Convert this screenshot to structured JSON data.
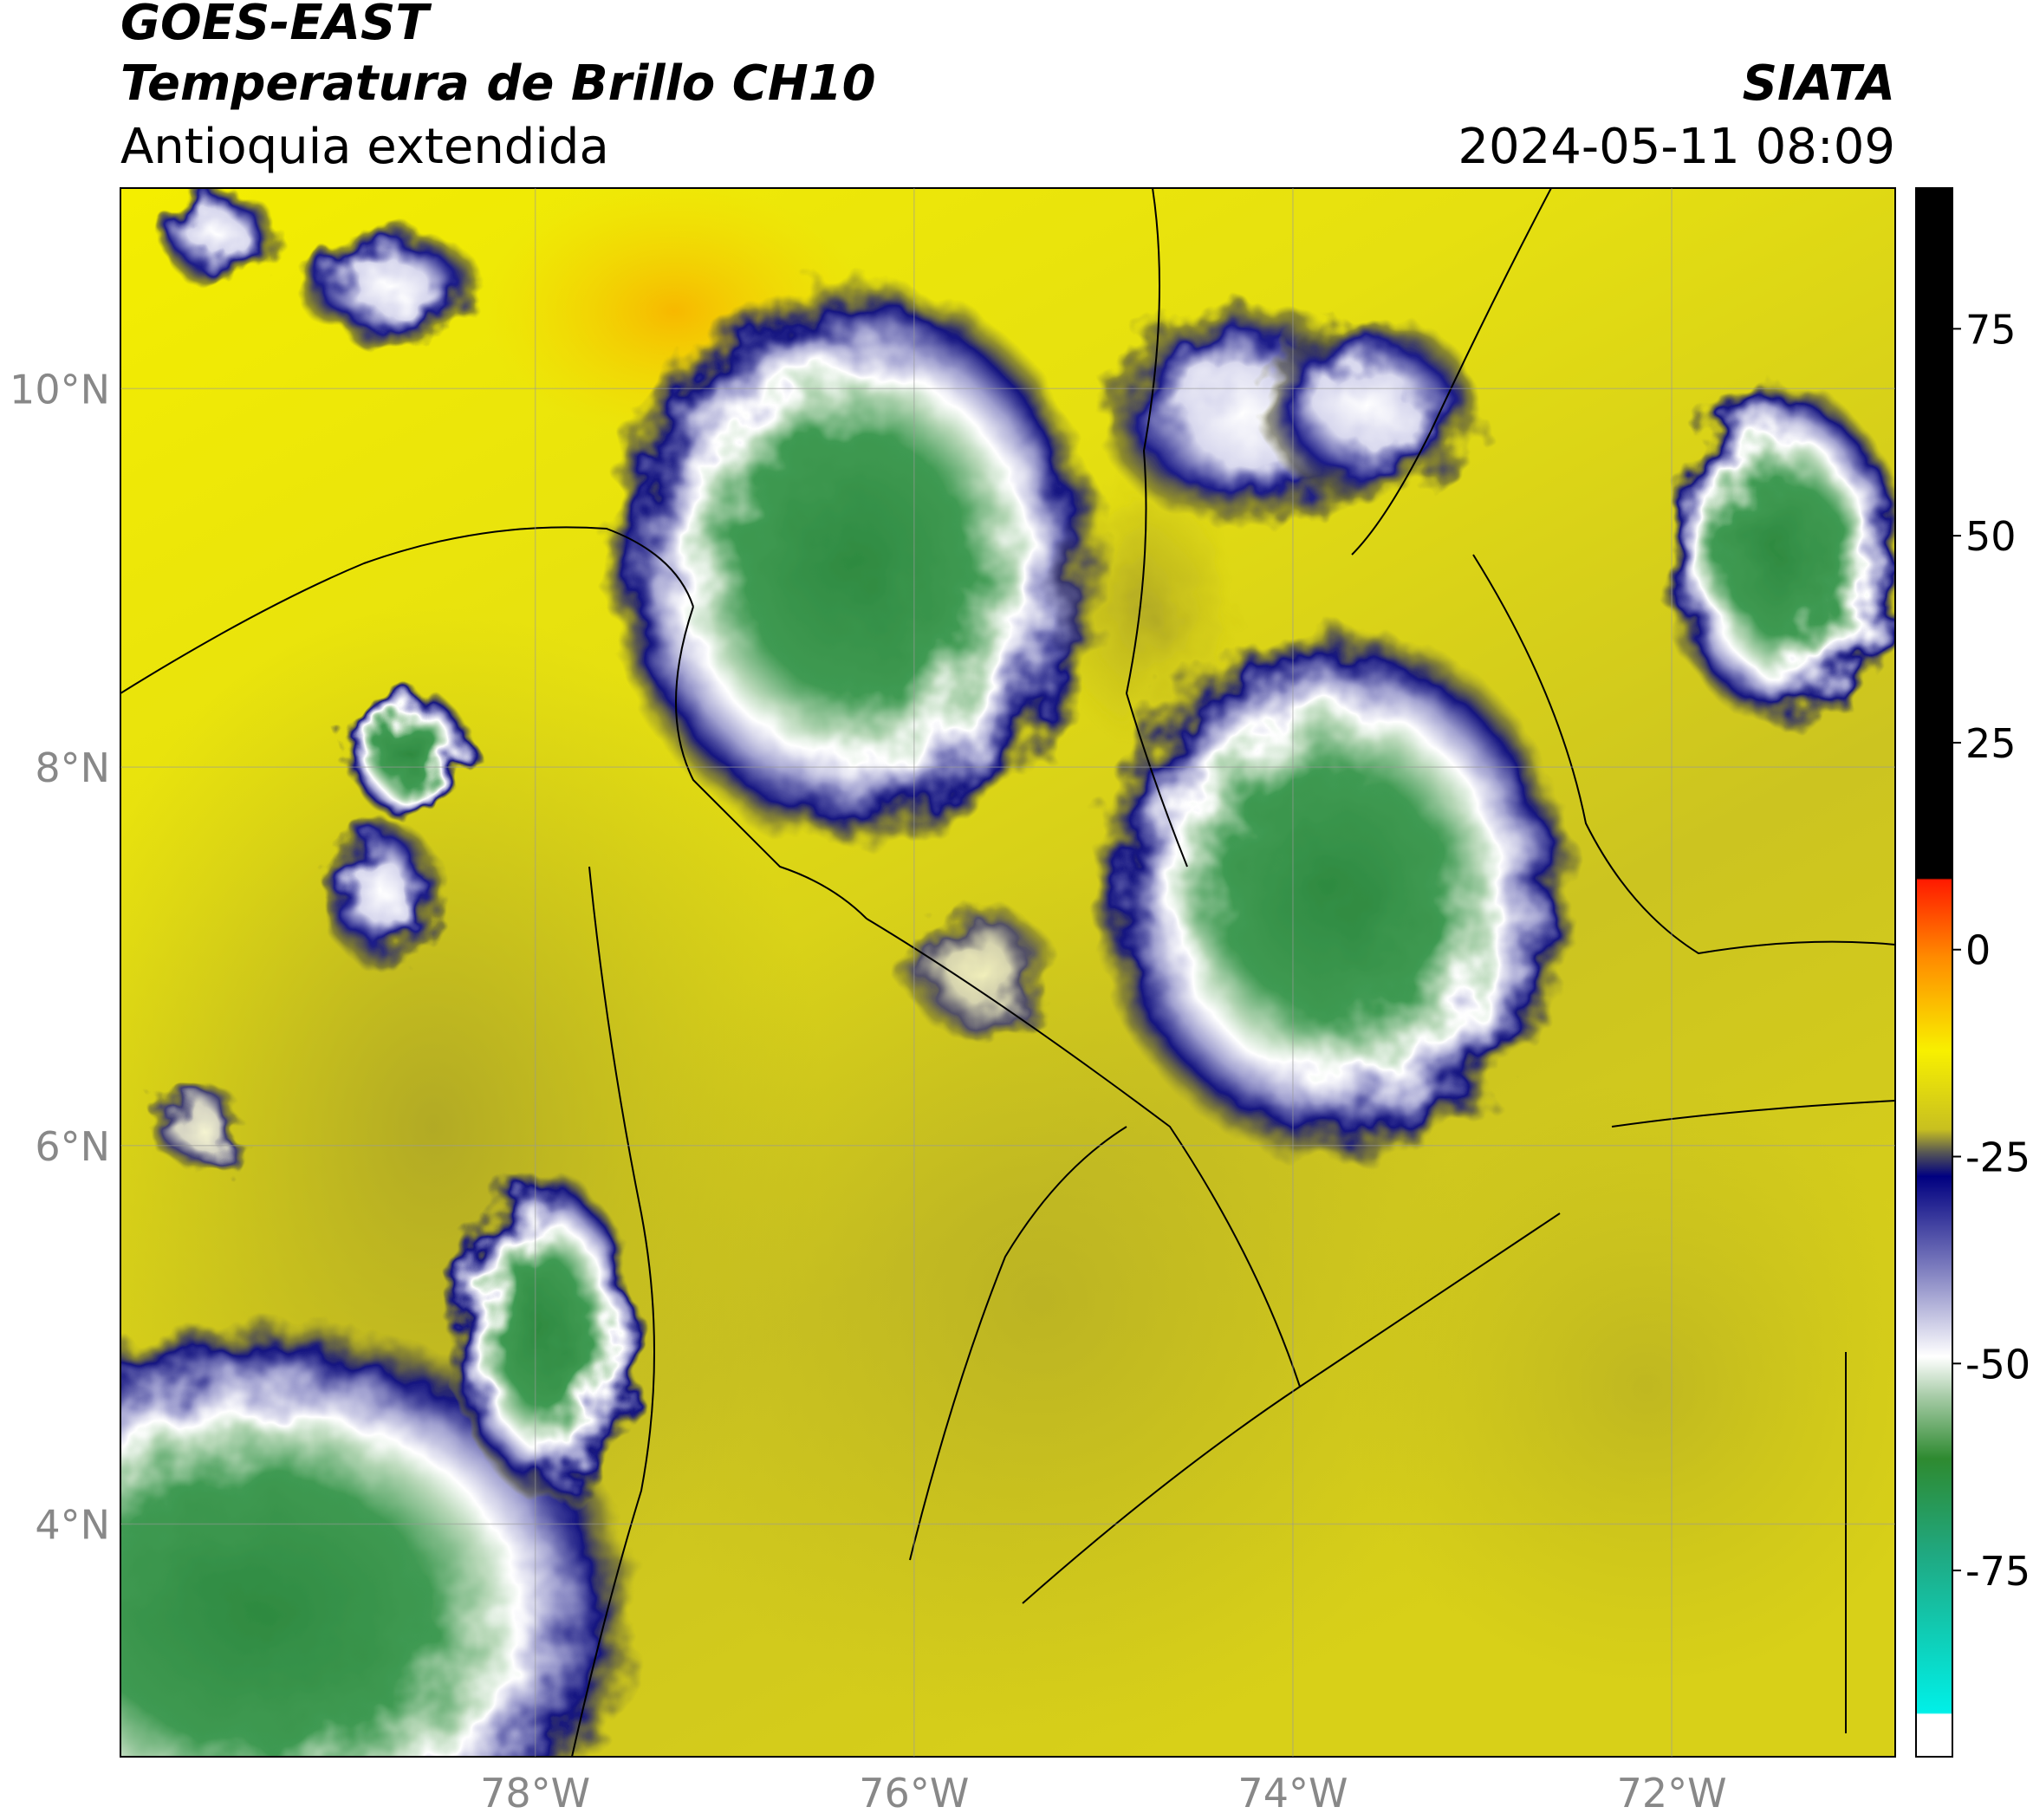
{
  "header": {
    "title": "GOES-EAST",
    "subtitle": "Temperatura de Brillo CH10",
    "region": "Antioquia extendida",
    "source": "SIATA",
    "timestamp": "2024-05-11 08:09"
  },
  "map": {
    "xlim": [
      -80.19,
      -70.82
    ],
    "ylim": [
      2.77,
      11.06
    ],
    "xticks": [
      {
        "value": -78,
        "label": "78°W"
      },
      {
        "value": -76,
        "label": "76°W"
      },
      {
        "value": -74,
        "label": "74°W"
      },
      {
        "value": -72,
        "label": "72°W"
      }
    ],
    "yticks": [
      {
        "value": 4,
        "label": "4°N"
      },
      {
        "value": 6,
        "label": "6°N"
      },
      {
        "value": 8,
        "label": "8°N"
      },
      {
        "value": 10,
        "label": "10°N"
      }
    ]
  },
  "colorbar": {
    "lim": [
      -97.5,
      92
    ],
    "ticks": [
      -75,
      -50,
      -25,
      0,
      25,
      50,
      75
    ]
  }
}
